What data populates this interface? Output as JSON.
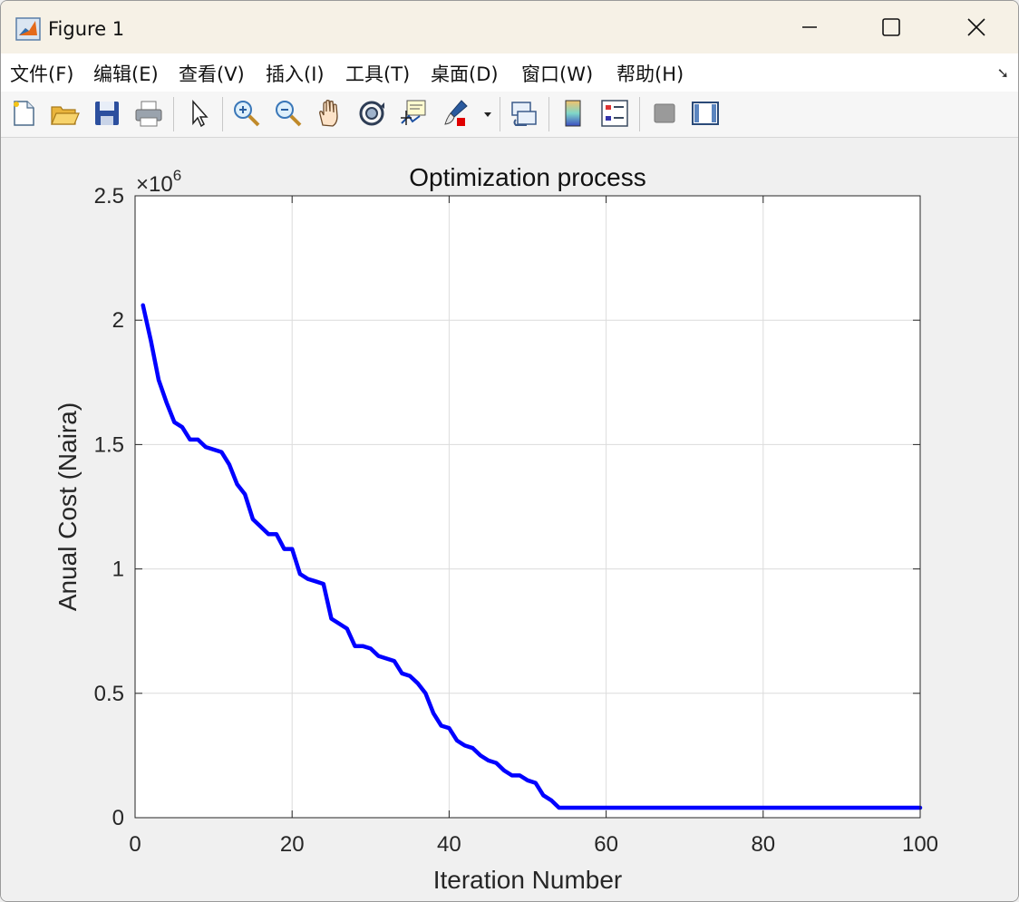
{
  "window": {
    "title": "Figure 1"
  },
  "menu": {
    "items": [
      "文件(F)",
      "编辑(E)",
      "查看(V)",
      "插入(I)",
      "工具(T)",
      "桌面(D)",
      "窗口(W)",
      "帮助(H)"
    ]
  },
  "toolbar": {
    "icons": [
      "new-figure-icon",
      "open-file-icon",
      "save-icon",
      "print-icon",
      "edit-plot-cursor-icon",
      "zoom-in-icon",
      "zoom-out-icon",
      "pan-hand-icon",
      "rotate-3d-icon",
      "data-cursor-icon",
      "brush-icon",
      "link-plot-icon",
      "colorbar-icon",
      "legend-icon",
      "hide-plot-tools-icon",
      "show-plot-tools-icon"
    ]
  },
  "chart_data": {
    "type": "line",
    "title": "Optimization process",
    "xlabel": "Iteration Number",
    "ylabel": "Anual Cost (Naira)",
    "exponent_label": "×10",
    "exponent_power": "6",
    "xlim": [
      0,
      100
    ],
    "ylim": [
      0,
      2.5
    ],
    "xticks": [
      "0",
      "20",
      "40",
      "60",
      "80",
      "100"
    ],
    "yticks": [
      "0",
      "0.5",
      "1",
      "1.5",
      "2",
      "2.5"
    ],
    "grid": true,
    "series": [
      {
        "color": "#0000ff",
        "x": [
          1,
          2,
          3,
          4,
          5,
          6,
          7,
          8,
          9,
          10,
          11,
          12,
          13,
          14,
          15,
          16,
          17,
          18,
          19,
          20,
          21,
          22,
          23,
          24,
          25,
          26,
          27,
          28,
          29,
          30,
          31,
          32,
          33,
          34,
          35,
          36,
          37,
          38,
          39,
          40,
          41,
          42,
          43,
          44,
          45,
          46,
          47,
          48,
          49,
          50,
          51,
          52,
          53,
          54,
          55,
          60,
          70,
          80,
          90,
          100
        ],
        "y": [
          2.06,
          1.92,
          1.76,
          1.67,
          1.59,
          1.57,
          1.52,
          1.52,
          1.49,
          1.48,
          1.47,
          1.42,
          1.34,
          1.3,
          1.2,
          1.17,
          1.14,
          1.14,
          1.08,
          1.08,
          0.98,
          0.96,
          0.95,
          0.94,
          0.8,
          0.78,
          0.76,
          0.69,
          0.69,
          0.68,
          0.65,
          0.64,
          0.63,
          0.58,
          0.57,
          0.54,
          0.5,
          0.42,
          0.37,
          0.36,
          0.31,
          0.29,
          0.28,
          0.25,
          0.23,
          0.22,
          0.19,
          0.17,
          0.17,
          0.15,
          0.14,
          0.09,
          0.07,
          0.04,
          0.04,
          0.04,
          0.04,
          0.04,
          0.04,
          0.04
        ]
      }
    ]
  }
}
